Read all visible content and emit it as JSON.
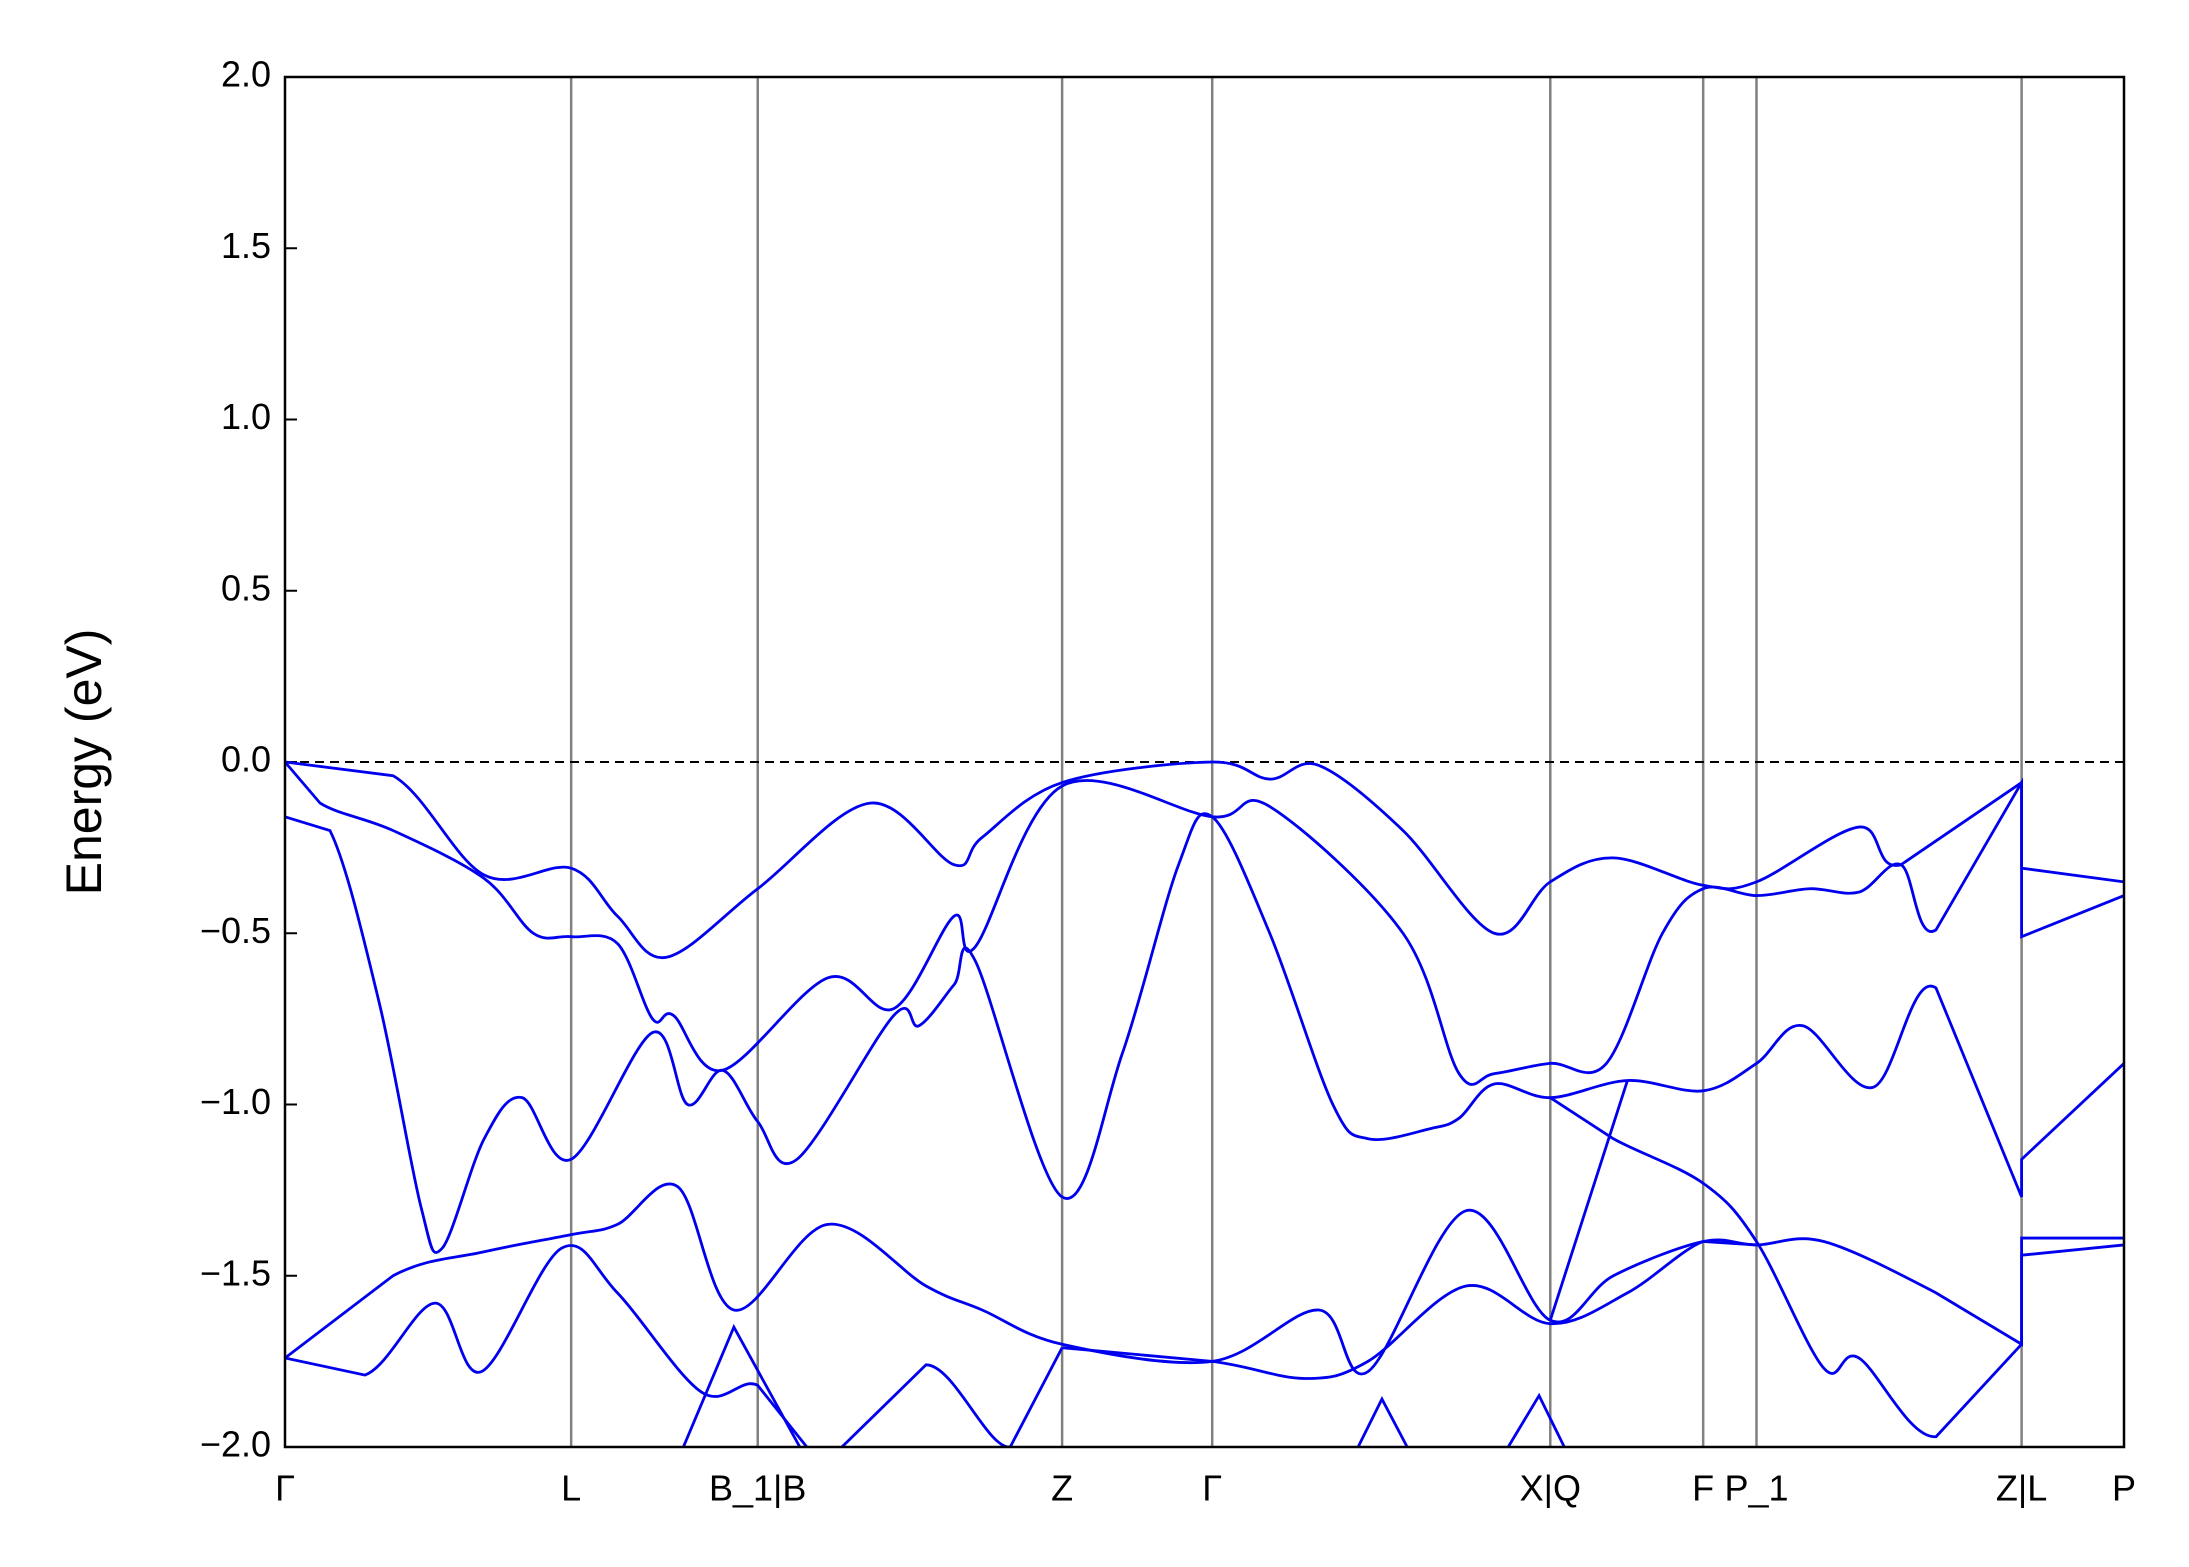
{
  "chart_data": {
    "type": "line",
    "y_label": "Energy (eV)",
    "color": "#0000ee",
    "xlim": [
      0,
      1311
    ],
    "ylim": [
      -2,
      2
    ],
    "reference_line": 0,
    "xticks": [
      {
        "value": 0,
        "label": "Γ"
      },
      {
        "value": 204,
        "label": "L"
      },
      {
        "value": 337,
        "label": "B_1|B"
      },
      {
        "value": 554,
        "label": "Z"
      },
      {
        "value": 661,
        "label": "Γ"
      },
      {
        "value": 902,
        "label": "X|Q"
      },
      {
        "value": 1011,
        "label": "F"
      },
      {
        "value": 1049,
        "label": "P_1"
      },
      {
        "value": 1238,
        "label": "Z|L"
      },
      {
        "value": 1311,
        "label": "P"
      }
    ],
    "yticks": [
      {
        "value": 2,
        "label": "2.0"
      },
      {
        "value": 1.5,
        "label": "1.5"
      },
      {
        "value": 1,
        "label": "1.0"
      },
      {
        "value": 0.5,
        "label": "0.5"
      },
      {
        "value": 0,
        "label": "0.0"
      },
      {
        "value": -0.5,
        "label": "−0.5"
      },
      {
        "value": -1,
        "label": "−1.0"
      },
      {
        "value": -1.5,
        "label": "−1.5"
      },
      {
        "value": -2,
        "label": "−2.0"
      }
    ],
    "series": [
      {
        "x": [
          0,
          77,
          142,
          204,
          237,
          272,
          337,
          417,
          477,
          497,
          554,
          661,
          702,
          737,
          797,
          862,
          902,
          947,
          1011,
          1049,
          1122,
          1152,
          1238,
          1238,
          1311
        ],
        "values": [
          0,
          -0.04,
          -0.33,
          -0.31,
          -0.45,
          -0.57,
          -0.37,
          -0.12,
          -0.3,
          -0.22,
          -0.06,
          0,
          -0.05,
          -0.01,
          -0.2,
          -0.5,
          -0.35,
          -0.28,
          -0.36,
          -0.35,
          -0.19,
          -0.3,
          -0.06,
          -0.31,
          -0.35
        ]
      },
      {
        "x": [
          0,
          25,
          77,
          142,
          177,
          204,
          237,
          262,
          277,
          312,
          387,
          434,
          477,
          492,
          554,
          661,
          702,
          797,
          837,
          862,
          902,
          942,
          982,
          1011,
          1049,
          1087,
          1122,
          1152,
          1177,
          1238,
          1238,
          1311
        ],
        "values": [
          0,
          -0.12,
          -0.2,
          -0.34,
          -0.5,
          -0.51,
          -0.53,
          -0.75,
          -0.74,
          -0.9,
          -0.63,
          -0.72,
          -0.45,
          -0.54,
          -0.07,
          -0.16,
          -0.13,
          -0.5,
          -0.91,
          -0.91,
          -0.88,
          -0.88,
          -0.5,
          -0.37,
          -0.39,
          -0.37,
          -0.38,
          -0.3,
          -0.49,
          -0.06,
          -0.51,
          -0.39
        ]
      },
      {
        "x": [
          0,
          32,
          67,
          97,
          112,
          142,
          169,
          204,
          262,
          287,
          312,
          337,
          365,
          434,
          452,
          477,
          492,
          554,
          597,
          637,
          661,
          702,
          747,
          772,
          817,
          837,
          862,
          902,
          957,
          1011,
          1049,
          1082,
          1132,
          1177,
          1238,
          1238,
          1311
        ],
        "values": [
          -0.16,
          -0.2,
          -0.7,
          -1.3,
          -1.42,
          -1.1,
          -0.98,
          -1.16,
          -0.79,
          -1.0,
          -0.9,
          -1.05,
          -1.16,
          -0.74,
          -0.77,
          -0.65,
          -0.58,
          -1.27,
          -0.85,
          -0.3,
          -0.16,
          -0.5,
          -1.0,
          -1.1,
          -1.07,
          -1.04,
          -0.94,
          -0.98,
          -0.93,
          -0.96,
          -0.88,
          -0.77,
          -0.95,
          -0.66,
          -1.27,
          -1.16,
          -0.88
        ]
      },
      {
        "x": [
          0,
          77,
          142,
          204,
          237,
          280,
          320,
          387,
          457,
          497,
          554,
          661,
          737,
          772,
          842,
          902,
          947,
          1011,
          1049,
          1097,
          1177,
          1238,
          1238,
          1311
        ],
        "values": [
          -1.74,
          -1.5,
          -1.43,
          -1.38,
          -1.35,
          -1.24,
          -1.6,
          -1.35,
          -1.53,
          -1.6,
          -1.7,
          -1.75,
          -1.6,
          -1.78,
          -1.31,
          -1.63,
          -1.5,
          -1.4,
          -1.41,
          -1.4,
          -1.55,
          -1.7,
          -1.39,
          -1.39
        ]
      },
      {
        "x": [
          902,
          947,
          1011,
          1049,
          1097,
          1122,
          1177,
          1238,
          1238,
          1311
        ],
        "values": [
          -0.98,
          -1.1,
          -1.23,
          -1.4,
          -1.77,
          -1.74,
          -1.97,
          -1.7,
          -1.44,
          -1.41
        ]
      },
      {
        "x": [
          902,
          957
        ],
        "values": [
          -1.63,
          -0.93
        ]
      },
      {
        "x": [
          0,
          57,
          107,
          140,
          197,
          237,
          297,
          337,
          372
        ],
        "values": [
          -1.74,
          -1.79,
          -1.58,
          -1.78,
          -1.42,
          -1.55,
          -1.84,
          -1.82,
          -2.0
        ]
      },
      {
        "x": [
          554,
          661,
          727,
          772,
          842,
          902,
          957,
          1011,
          1049
        ],
        "values": [
          -1.71,
          -1.75,
          -1.8,
          -1.75,
          -1.53,
          -1.64,
          -1.55,
          -1.4,
          -1.41
        ]
      },
      {
        "x": [
          284,
          320,
          367
        ],
        "values": [
          -2.0,
          -1.65,
          -2.0
        ]
      },
      {
        "x": [
          397,
          457,
          517,
          554
        ],
        "values": [
          -2.0,
          -1.76,
          -2.0,
          -1.71
        ]
      },
      {
        "x": [
          765,
          782,
          800
        ],
        "values": [
          -2.0,
          -1.86,
          -2.0
        ]
      },
      {
        "x": [
          872,
          894,
          912
        ],
        "values": [
          -2.0,
          -1.85,
          -2.0
        ]
      }
    ]
  }
}
